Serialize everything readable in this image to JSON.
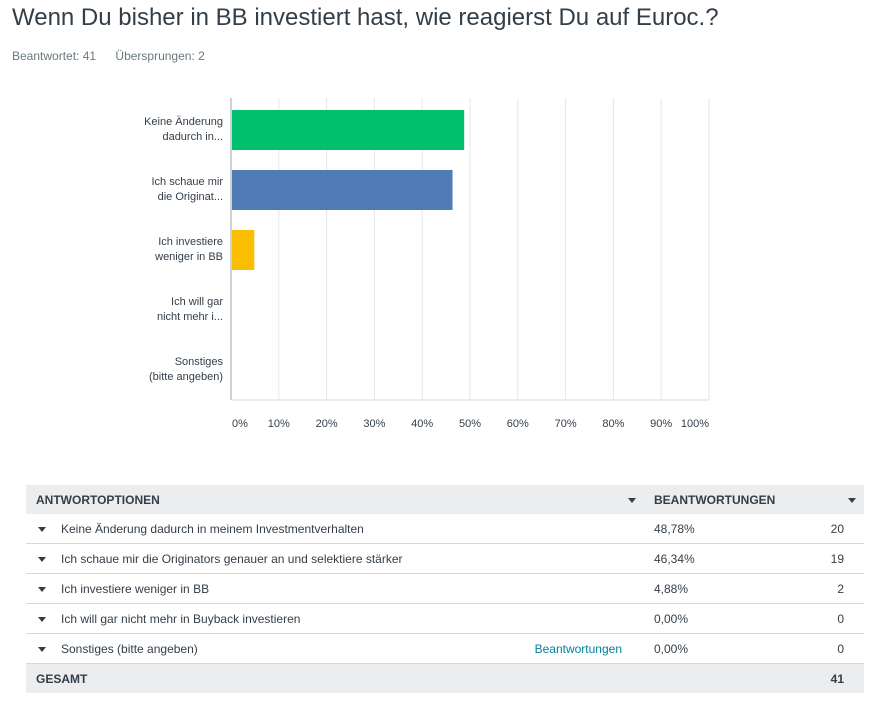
{
  "question": {
    "title": "Wenn Du bisher in BB investiert hast, wie reagierst Du auf Euroc.?",
    "answered": "Beantwortet: 41",
    "skipped": "Übersprungen: 2"
  },
  "chart_data": {
    "type": "bar",
    "orientation": "horizontal",
    "categories": [
      "Keine Änderung dadurch in...",
      "Ich schaue mir die Originat...",
      "Ich investiere weniger in BB",
      "Ich will gar nicht mehr i...",
      "Sonstiges (bitte angeben)"
    ],
    "category_lines": [
      [
        "Keine Änderung",
        "dadurch in..."
      ],
      [
        "Ich schaue mir",
        "die Originat..."
      ],
      [
        "Ich investiere",
        "weniger in BB"
      ],
      [
        "Ich will gar",
        "nicht mehr i..."
      ],
      [
        "Sonstiges",
        "(bitte angeben)"
      ]
    ],
    "values": [
      48.78,
      46.34,
      4.88,
      0,
      0
    ],
    "colors": [
      "#00bf6f",
      "#507cb6",
      "#f9be00",
      "#6bc8cd",
      "#996666"
    ],
    "xlim": [
      0,
      100
    ],
    "ticks": [
      "0%",
      "10%",
      "20%",
      "30%",
      "40%",
      "50%",
      "60%",
      "70%",
      "80%",
      "90%",
      "100%"
    ],
    "grid": true
  },
  "table": {
    "header_options": "ANTWORTOPTIONEN",
    "header_responses": "BEANTWORTUNGEN",
    "rows": [
      {
        "option": "Keine Änderung dadurch in meinem Investmentverhalten",
        "percent": "48,78%",
        "count": "20"
      },
      {
        "option": "Ich schaue mir die Originators genauer an und selektiere stärker",
        "percent": "46,34%",
        "count": "19"
      },
      {
        "option": "Ich investiere weniger in BB",
        "percent": "4,88%",
        "count": "2"
      },
      {
        "option": "Ich will gar nicht mehr in Buyback investieren",
        "percent": "0,00%",
        "count": "0"
      },
      {
        "option": "Sonstiges (bitte angeben)",
        "percent": "0,00%",
        "count": "0",
        "link": "Beantwortungen"
      }
    ],
    "total_label": "GESAMT",
    "total_value": "41"
  }
}
